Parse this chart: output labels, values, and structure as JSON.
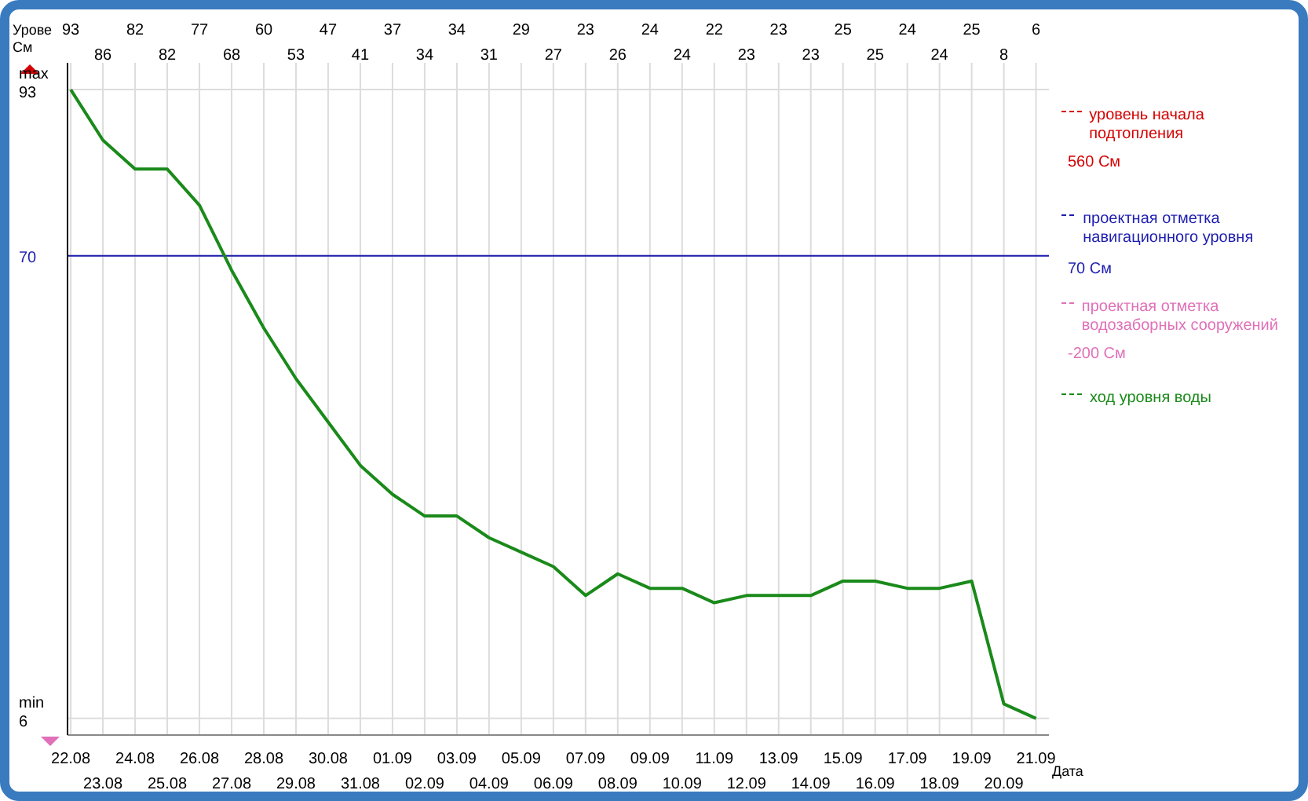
{
  "chart_data": {
    "type": "line",
    "ylabel": "Урове См",
    "xlabel": "Дата",
    "categories": [
      "22.08",
      "23.08",
      "24.08",
      "25.08",
      "26.08",
      "27.08",
      "28.08",
      "29.08",
      "30.08",
      "31.08",
      "01.09",
      "02.09",
      "03.09",
      "04.09",
      "05.09",
      "06.09",
      "07.09",
      "08.09",
      "09.09",
      "10.09",
      "11.09",
      "12.09",
      "13.09",
      "14.09",
      "15.09",
      "16.09",
      "17.09",
      "18.09",
      "19.09",
      "20.09",
      "21.09"
    ],
    "series": [
      {
        "name": "ход уровня воды",
        "color": "#1a8a1a",
        "values": [
          93,
          86,
          82,
          82,
          77,
          68,
          60,
          53,
          47,
          41,
          37,
          34,
          34,
          31,
          29,
          27,
          23,
          26,
          24,
          24,
          22,
          23,
          23,
          23,
          25,
          25,
          24,
          24,
          25,
          8,
          6
        ]
      }
    ],
    "ylim": [
      3.7,
      96.7
    ],
    "yticks": [
      93,
      70,
      6
    ],
    "ref_lines": [
      {
        "axis": "y",
        "value": 70,
        "label": "проектная отметка навигационного уровня",
        "color": "#1c1cb0"
      }
    ],
    "annotations": [
      "уровень начала подтопления",
      "560 См",
      "70 См",
      "проектная отметка водозаборных сооружений",
      "-200 См",
      "max",
      "min"
    ],
    "value_labels": [
      "93",
      "86",
      "82",
      "82",
      "77",
      "68",
      "60",
      "53",
      "47",
      "41",
      "37",
      "34",
      "34",
      "31",
      "29",
      "27",
      "23",
      "26",
      "24",
      "24",
      "22",
      "23",
      "23",
      "23",
      "25",
      "25",
      "24",
      "24",
      "25",
      "8",
      "6"
    ],
    "grid": true,
    "legend": "right"
  }
}
